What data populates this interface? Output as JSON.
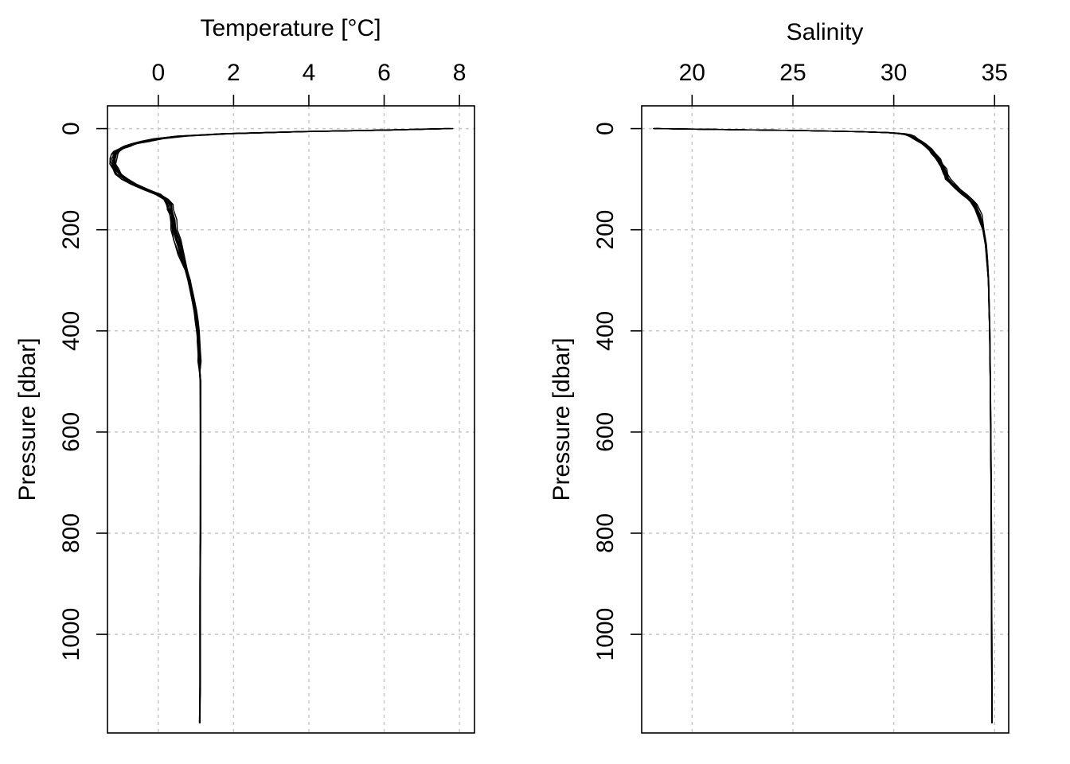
{
  "chart_data": [
    {
      "type": "line",
      "title": "",
      "xlabel": "Temperature [°C]",
      "ylabel": "Pressure [dbar]",
      "x_axis_position": "top",
      "y_axis_reversed": true,
      "grid": true,
      "xlim": [
        -1.35,
        8.4
      ],
      "ylim": [
        1195,
        -45
      ],
      "xticks": [
        0,
        2,
        4,
        6,
        8
      ],
      "xtick_labels": [
        "0",
        "2",
        "4",
        "6",
        "8"
      ],
      "yticks": [
        0,
        200,
        400,
        600,
        800,
        1000
      ],
      "ytick_labels": [
        "0",
        "200",
        "400",
        "600",
        "800",
        "1000"
      ],
      "series_count": 12,
      "mean_profile": {
        "pressure": [
          0,
          3,
          6,
          10,
          15,
          20,
          25,
          30,
          35,
          40,
          45,
          50,
          60,
          70,
          80,
          90,
          100,
          110,
          120,
          130,
          140,
          150,
          160,
          170,
          180,
          200,
          220,
          250,
          280,
          300,
          330,
          360,
          380,
          400,
          420,
          440,
          460,
          480,
          500,
          600,
          700,
          800,
          900,
          1000,
          1100,
          1175
        ],
        "temperature": [
          7.7,
          6.0,
          3.8,
          1.8,
          0.6,
          0.0,
          -0.35,
          -0.65,
          -0.85,
          -1.0,
          -1.1,
          -1.15,
          -1.2,
          -1.2,
          -1.15,
          -1.05,
          -0.9,
          -0.65,
          -0.35,
          0.0,
          0.2,
          0.3,
          0.3,
          0.35,
          0.38,
          0.42,
          0.5,
          0.62,
          0.75,
          0.82,
          0.9,
          0.98,
          1.02,
          1.05,
          1.07,
          1.08,
          1.09,
          1.1,
          1.12,
          1.12,
          1.12,
          1.12,
          1.11,
          1.11,
          1.11,
          1.1
        ]
      }
    },
    {
      "type": "line",
      "title": "",
      "xlabel": "Salinity",
      "ylabel": "Pressure [dbar]",
      "x_axis_position": "top",
      "y_axis_reversed": true,
      "grid": true,
      "xlim": [
        17.5,
        35.7
      ],
      "ylim": [
        1195,
        -45
      ],
      "xticks": [
        20,
        25,
        30,
        35
      ],
      "xtick_labels": [
        "20",
        "25",
        "30",
        "35"
      ],
      "yticks": [
        0,
        200,
        400,
        600,
        800,
        1000
      ],
      "ytick_labels": [
        "0",
        "200",
        "400",
        "600",
        "800",
        "1000"
      ],
      "series_count": 12,
      "mean_profile": {
        "pressure": [
          0,
          2,
          4,
          6,
          8,
          10,
          12,
          15,
          20,
          25,
          30,
          40,
          50,
          60,
          70,
          80,
          90,
          100,
          110,
          120,
          130,
          140,
          150,
          170,
          200,
          230,
          260,
          300,
          350,
          400,
          500,
          600,
          700,
          800,
          900,
          1000,
          1100,
          1175
        ],
        "salinity": [
          18.2,
          22.0,
          25.5,
          28.3,
          29.8,
          30.4,
          30.7,
          30.9,
          31.1,
          31.3,
          31.5,
          31.8,
          32.0,
          32.2,
          32.35,
          32.5,
          32.6,
          32.7,
          32.95,
          33.2,
          33.5,
          33.8,
          34.0,
          34.25,
          34.45,
          34.58,
          34.64,
          34.7,
          34.73,
          34.76,
          34.79,
          34.81,
          34.83,
          34.84,
          34.85,
          34.86,
          34.87,
          34.87
        ]
      }
    }
  ]
}
